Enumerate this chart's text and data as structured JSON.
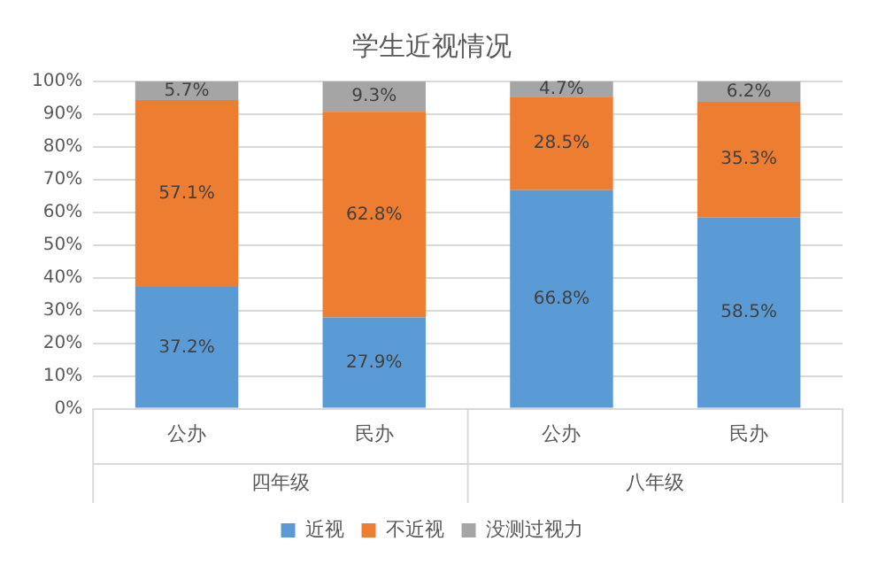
{
  "chart_data": {
    "type": "bar",
    "title": "学生近视情况",
    "categories": [
      "公办",
      "民办",
      "公办",
      "民办"
    ],
    "stacked": true,
    "series": [
      {
        "name": "近视",
        "color": "#5b9bd5",
        "values": [
          37.2,
          27.9,
          66.8,
          58.5
        ],
        "value_labels": [
          "37.2%",
          "27.9%",
          "66.8%",
          "58.5%"
        ]
      },
      {
        "name": "不近视",
        "color": "#ed7d31",
        "values": [
          57.1,
          62.8,
          28.5,
          35.3
        ],
        "value_labels": [
          "57.1%",
          "62.8%",
          "28.5%",
          "35.3%"
        ]
      },
      {
        "name": "没测过视力",
        "color": "#a5a5a5",
        "values": [
          5.7,
          9.3,
          4.7,
          6.2
        ],
        "value_labels": [
          "5.7%",
          "9.3%",
          "4.7%",
          "6.2%"
        ]
      }
    ],
    "annotations": [
      "四年级",
      "八年级"
    ],
    "ylim": [
      0,
      100
    ],
    "yticks": [
      {
        "value": 0,
        "label": "0%"
      },
      {
        "value": 10,
        "label": "10%"
      },
      {
        "value": 20,
        "label": "20%"
      },
      {
        "value": 30,
        "label": "30%"
      },
      {
        "value": 40,
        "label": "40%"
      },
      {
        "value": 50,
        "label": "50%"
      },
      {
        "value": 60,
        "label": "60%"
      },
      {
        "value": 70,
        "label": "70%"
      },
      {
        "value": 80,
        "label": "80%"
      },
      {
        "value": 90,
        "label": "90%"
      },
      {
        "value": 100,
        "label": "100%"
      }
    ],
    "grid": "y",
    "legend": "bottom"
  }
}
